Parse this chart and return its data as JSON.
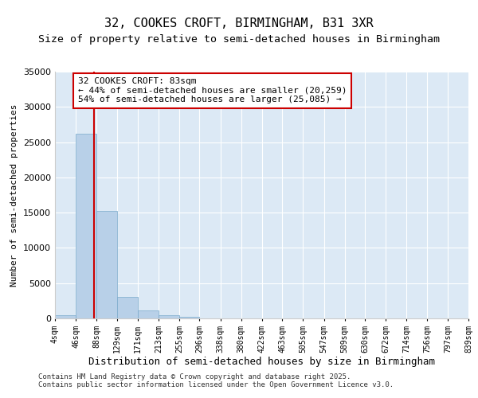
{
  "title": "32, COOKES CROFT, BIRMINGHAM, B31 3XR",
  "subtitle": "Size of property relative to semi-detached houses in Birmingham",
  "xlabel": "Distribution of semi-detached houses by size in Birmingham",
  "ylabel": "Number of semi-detached properties",
  "annotation_title": "32 COOKES CROFT: 83sqm",
  "annotation_line1": "← 44% of semi-detached houses are smaller (20,259)",
  "annotation_line2": "54% of semi-detached houses are larger (25,085) →",
  "property_size": 83,
  "bin_edges": [
    4,
    46,
    88,
    129,
    171,
    213,
    255,
    296,
    338,
    380,
    422,
    463,
    505,
    547,
    589,
    630,
    672,
    714,
    756,
    797,
    839
  ],
  "bin_labels": [
    "4sqm",
    "46sqm",
    "88sqm",
    "129sqm",
    "171sqm",
    "213sqm",
    "255sqm",
    "296sqm",
    "338sqm",
    "380sqm",
    "422sqm",
    "463sqm",
    "505sqm",
    "547sqm",
    "589sqm",
    "630sqm",
    "672sqm",
    "714sqm",
    "756sqm",
    "797sqm",
    "839sqm"
  ],
  "bar_heights": [
    400,
    26200,
    15200,
    3100,
    1100,
    450,
    280,
    0,
    0,
    0,
    0,
    0,
    0,
    0,
    0,
    0,
    0,
    0,
    0,
    0
  ],
  "bar_color": "#b8d0e8",
  "bar_edge_color": "#7aaacb",
  "vline_x": 83,
  "vline_color": "#cc0000",
  "background_color": "#dce9f5",
  "ylim": [
    0,
    35000
  ],
  "yticks": [
    0,
    5000,
    10000,
    15000,
    20000,
    25000,
    30000,
    35000
  ],
  "footer1": "Contains HM Land Registry data © Crown copyright and database right 2025.",
  "footer2": "Contains public sector information licensed under the Open Government Licence v3.0.",
  "annotation_box_color": "#cc0000",
  "title_fontsize": 11,
  "subtitle_fontsize": 9.5
}
